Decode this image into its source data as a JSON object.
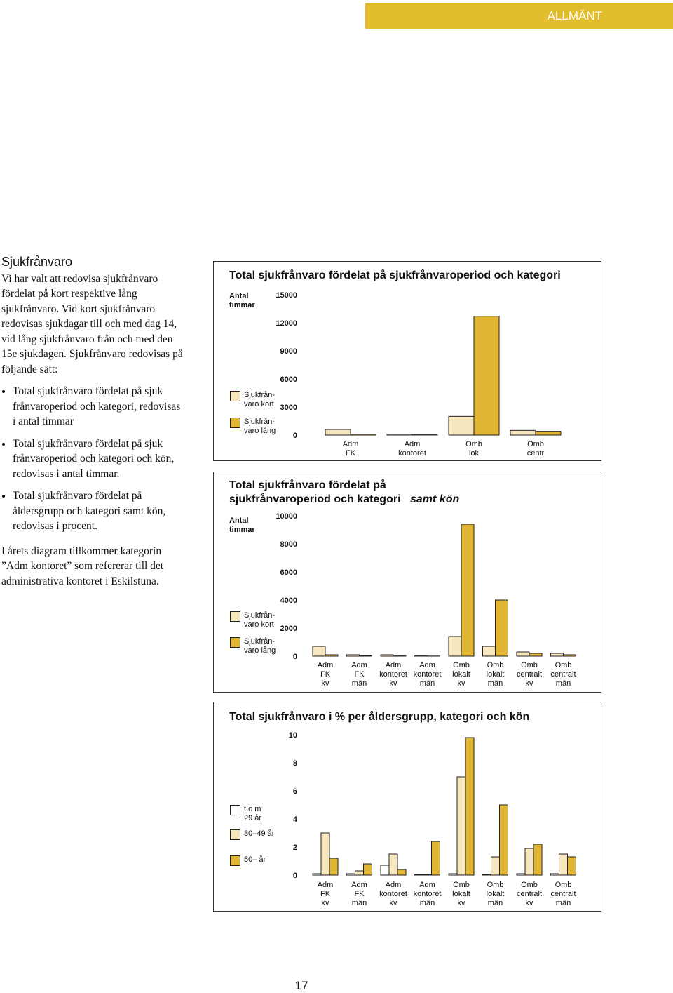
{
  "header": {
    "label": "ALLMÄNT"
  },
  "section_title": "Sjukfrånvaro",
  "intro": "Vi har valt att redovisa sjukfrånvaro fördelat på kort respektive lång sjukfrånvaro. Vid kort sjukfrånvaro redovisas sjukdagar till och med dag 14, vid lång sjukfrånvaro från och med den 15e sjukdagen. Sjukfrånvaro redovisas på följande sätt:",
  "bullets": [
    "Total sjukfrånvaro fördelat på sjuk frånvaroperiod och kategori, redovisas i antal timmar",
    "Total sjukfrånvaro fördelat på sjuk frånvaroperiod och kategori och kön, redovisas i antal timmar.",
    "Total sjukfrånvaro fördelat på åldersgrupp och kategori samt kön, redovisas i procent."
  ],
  "outro": "I årets diagram tillkommer kategorin ”Adm kontoret” som refererar till det administrativa kontoret i Eskilstuna.",
  "page_number": "17",
  "chart_data": [
    {
      "type": "bar",
      "title": [
        "Total sjukfrånvaro fördelat på sjukfrånvaroperiod och kategori"
      ],
      "y_label": [
        "Antal",
        "timmar"
      ],
      "categories": [
        [
          "Adm",
          "FK"
        ],
        [
          "Adm",
          "kontoret"
        ],
        [
          "Omb",
          "lok"
        ],
        [
          "Omb",
          "centr"
        ]
      ],
      "series": [
        {
          "name": [
            "Sjukfrån-",
            "varo kort"
          ],
          "color": "#f7e7bf",
          "values": [
            600,
            100,
            2000,
            500
          ]
        },
        {
          "name": [
            "Sjukfrån-",
            "varo lång"
          ],
          "color": "#e0b634",
          "values": [
            100,
            30,
            12700,
            400
          ]
        }
      ],
      "ylim": [
        0,
        15000
      ],
      "yticks": [
        0,
        3000,
        6000,
        9000,
        12000,
        15000
      ]
    },
    {
      "type": "bar",
      "title": [
        "Total sjukfrånvaro fördelat på",
        "sjukfrånvaroperiod och kategori",
        "samt kön"
      ],
      "y_label": [
        "Antal",
        "timmar"
      ],
      "categories": [
        [
          "Adm",
          "FK",
          "kv"
        ],
        [
          "Adm",
          "FK",
          "män"
        ],
        [
          "Adm",
          "kontoret",
          "kv"
        ],
        [
          "Adm",
          "kontoret",
          "män"
        ],
        [
          "Omb",
          "lokalt",
          "kv"
        ],
        [
          "Omb",
          "lokalt",
          "män"
        ],
        [
          "Omb",
          "centralt",
          "kv"
        ],
        [
          "Omb",
          "centralt",
          "män"
        ]
      ],
      "series": [
        {
          "name": [
            "Sjukfrån-",
            "varo kort"
          ],
          "color": "#f7e7bf",
          "values": [
            700,
            100,
            100,
            20,
            1400,
            700,
            300,
            200
          ]
        },
        {
          "name": [
            "Sjukfrån-",
            "varo lång"
          ],
          "color": "#e0b634",
          "values": [
            100,
            50,
            20,
            10,
            9400,
            4000,
            200,
            100
          ]
        }
      ],
      "ylim": [
        0,
        10000
      ],
      "yticks": [
        0,
        2000,
        4000,
        6000,
        8000,
        10000
      ]
    },
    {
      "type": "bar",
      "title": [
        "Total sjukfrånvaro i % per åldersgrupp, kategori och kön"
      ],
      "categories": [
        [
          "Adm",
          "FK",
          "kv"
        ],
        [
          "Adm",
          "FK",
          "män"
        ],
        [
          "Adm",
          "kontoret",
          "kv"
        ],
        [
          "Adm",
          "kontoret",
          "män"
        ],
        [
          "Omb",
          "lokalt",
          "kv"
        ],
        [
          "Omb",
          "lokalt",
          "män"
        ],
        [
          "Omb",
          "centralt",
          "kv"
        ],
        [
          "Omb",
          "centralt",
          "män"
        ]
      ],
      "series": [
        {
          "name": [
            "t o m",
            "29 år"
          ],
          "color": "#ffffff",
          "values": [
            0.1,
            0.1,
            0.7,
            0.05,
            0.1,
            0.05,
            0.1,
            0.1
          ]
        },
        {
          "name": [
            "30–49 år"
          ],
          "color": "#f7e7bf",
          "values": [
            3.0,
            0.3,
            1.5,
            0.05,
            7.0,
            1.3,
            1.9,
            1.5
          ]
        },
        {
          "name": [
            "50– år"
          ],
          "color": "#e0b634",
          "values": [
            1.2,
            0.8,
            0.4,
            2.4,
            9.8,
            5.0,
            2.2,
            1.3
          ]
        }
      ],
      "ylim": [
        0,
        10
      ],
      "yticks": [
        0,
        2,
        4,
        6,
        8,
        10
      ]
    }
  ]
}
